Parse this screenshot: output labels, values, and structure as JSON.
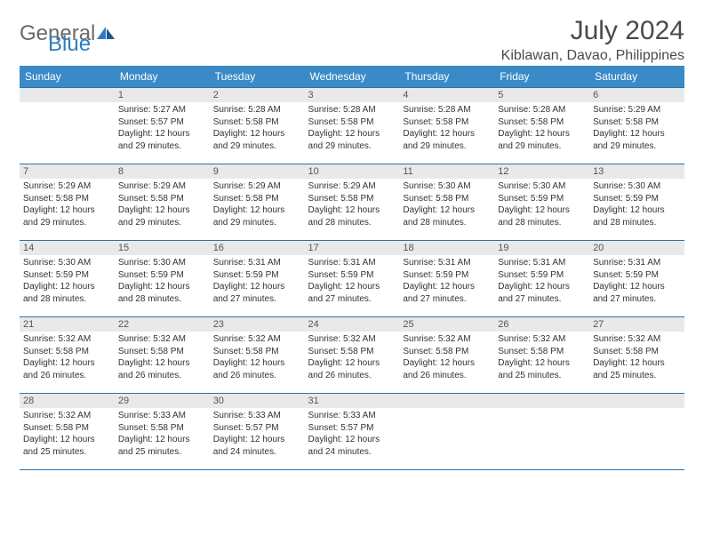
{
  "logo": {
    "word1": "General",
    "word2": "Blue"
  },
  "title": "July 2024",
  "location": "Kiblawan, Davao, Philippines",
  "colors": {
    "header_bg": "#3a8ac8",
    "header_fg": "#ffffff",
    "daynum_bg": "#e9e9e9",
    "border": "#2f6fa8",
    "logo_gray": "#6a6a6a",
    "logo_blue": "#2f7bbf",
    "text": "#333333"
  },
  "weekdays": [
    "Sunday",
    "Monday",
    "Tuesday",
    "Wednesday",
    "Thursday",
    "Friday",
    "Saturday"
  ],
  "weeks": [
    [
      null,
      {
        "n": "1",
        "sunrise": "Sunrise: 5:27 AM",
        "sunset": "Sunset: 5:57 PM",
        "daylight": "Daylight: 12 hours and 29 minutes."
      },
      {
        "n": "2",
        "sunrise": "Sunrise: 5:28 AM",
        "sunset": "Sunset: 5:58 PM",
        "daylight": "Daylight: 12 hours and 29 minutes."
      },
      {
        "n": "3",
        "sunrise": "Sunrise: 5:28 AM",
        "sunset": "Sunset: 5:58 PM",
        "daylight": "Daylight: 12 hours and 29 minutes."
      },
      {
        "n": "4",
        "sunrise": "Sunrise: 5:28 AM",
        "sunset": "Sunset: 5:58 PM",
        "daylight": "Daylight: 12 hours and 29 minutes."
      },
      {
        "n": "5",
        "sunrise": "Sunrise: 5:28 AM",
        "sunset": "Sunset: 5:58 PM",
        "daylight": "Daylight: 12 hours and 29 minutes."
      },
      {
        "n": "6",
        "sunrise": "Sunrise: 5:29 AM",
        "sunset": "Sunset: 5:58 PM",
        "daylight": "Daylight: 12 hours and 29 minutes."
      }
    ],
    [
      {
        "n": "7",
        "sunrise": "Sunrise: 5:29 AM",
        "sunset": "Sunset: 5:58 PM",
        "daylight": "Daylight: 12 hours and 29 minutes."
      },
      {
        "n": "8",
        "sunrise": "Sunrise: 5:29 AM",
        "sunset": "Sunset: 5:58 PM",
        "daylight": "Daylight: 12 hours and 29 minutes."
      },
      {
        "n": "9",
        "sunrise": "Sunrise: 5:29 AM",
        "sunset": "Sunset: 5:58 PM",
        "daylight": "Daylight: 12 hours and 29 minutes."
      },
      {
        "n": "10",
        "sunrise": "Sunrise: 5:29 AM",
        "sunset": "Sunset: 5:58 PM",
        "daylight": "Daylight: 12 hours and 28 minutes."
      },
      {
        "n": "11",
        "sunrise": "Sunrise: 5:30 AM",
        "sunset": "Sunset: 5:58 PM",
        "daylight": "Daylight: 12 hours and 28 minutes."
      },
      {
        "n": "12",
        "sunrise": "Sunrise: 5:30 AM",
        "sunset": "Sunset: 5:59 PM",
        "daylight": "Daylight: 12 hours and 28 minutes."
      },
      {
        "n": "13",
        "sunrise": "Sunrise: 5:30 AM",
        "sunset": "Sunset: 5:59 PM",
        "daylight": "Daylight: 12 hours and 28 minutes."
      }
    ],
    [
      {
        "n": "14",
        "sunrise": "Sunrise: 5:30 AM",
        "sunset": "Sunset: 5:59 PM",
        "daylight": "Daylight: 12 hours and 28 minutes."
      },
      {
        "n": "15",
        "sunrise": "Sunrise: 5:30 AM",
        "sunset": "Sunset: 5:59 PM",
        "daylight": "Daylight: 12 hours and 28 minutes."
      },
      {
        "n": "16",
        "sunrise": "Sunrise: 5:31 AM",
        "sunset": "Sunset: 5:59 PM",
        "daylight": "Daylight: 12 hours and 27 minutes."
      },
      {
        "n": "17",
        "sunrise": "Sunrise: 5:31 AM",
        "sunset": "Sunset: 5:59 PM",
        "daylight": "Daylight: 12 hours and 27 minutes."
      },
      {
        "n": "18",
        "sunrise": "Sunrise: 5:31 AM",
        "sunset": "Sunset: 5:59 PM",
        "daylight": "Daylight: 12 hours and 27 minutes."
      },
      {
        "n": "19",
        "sunrise": "Sunrise: 5:31 AM",
        "sunset": "Sunset: 5:59 PM",
        "daylight": "Daylight: 12 hours and 27 minutes."
      },
      {
        "n": "20",
        "sunrise": "Sunrise: 5:31 AM",
        "sunset": "Sunset: 5:59 PM",
        "daylight": "Daylight: 12 hours and 27 minutes."
      }
    ],
    [
      {
        "n": "21",
        "sunrise": "Sunrise: 5:32 AM",
        "sunset": "Sunset: 5:58 PM",
        "daylight": "Daylight: 12 hours and 26 minutes."
      },
      {
        "n": "22",
        "sunrise": "Sunrise: 5:32 AM",
        "sunset": "Sunset: 5:58 PM",
        "daylight": "Daylight: 12 hours and 26 minutes."
      },
      {
        "n": "23",
        "sunrise": "Sunrise: 5:32 AM",
        "sunset": "Sunset: 5:58 PM",
        "daylight": "Daylight: 12 hours and 26 minutes."
      },
      {
        "n": "24",
        "sunrise": "Sunrise: 5:32 AM",
        "sunset": "Sunset: 5:58 PM",
        "daylight": "Daylight: 12 hours and 26 minutes."
      },
      {
        "n": "25",
        "sunrise": "Sunrise: 5:32 AM",
        "sunset": "Sunset: 5:58 PM",
        "daylight": "Daylight: 12 hours and 26 minutes."
      },
      {
        "n": "26",
        "sunrise": "Sunrise: 5:32 AM",
        "sunset": "Sunset: 5:58 PM",
        "daylight": "Daylight: 12 hours and 25 minutes."
      },
      {
        "n": "27",
        "sunrise": "Sunrise: 5:32 AM",
        "sunset": "Sunset: 5:58 PM",
        "daylight": "Daylight: 12 hours and 25 minutes."
      }
    ],
    [
      {
        "n": "28",
        "sunrise": "Sunrise: 5:32 AM",
        "sunset": "Sunset: 5:58 PM",
        "daylight": "Daylight: 12 hours and 25 minutes."
      },
      {
        "n": "29",
        "sunrise": "Sunrise: 5:33 AM",
        "sunset": "Sunset: 5:58 PM",
        "daylight": "Daylight: 12 hours and 25 minutes."
      },
      {
        "n": "30",
        "sunrise": "Sunrise: 5:33 AM",
        "sunset": "Sunset: 5:57 PM",
        "daylight": "Daylight: 12 hours and 24 minutes."
      },
      {
        "n": "31",
        "sunrise": "Sunrise: 5:33 AM",
        "sunset": "Sunset: 5:57 PM",
        "daylight": "Daylight: 12 hours and 24 minutes."
      },
      null,
      null,
      null
    ]
  ]
}
